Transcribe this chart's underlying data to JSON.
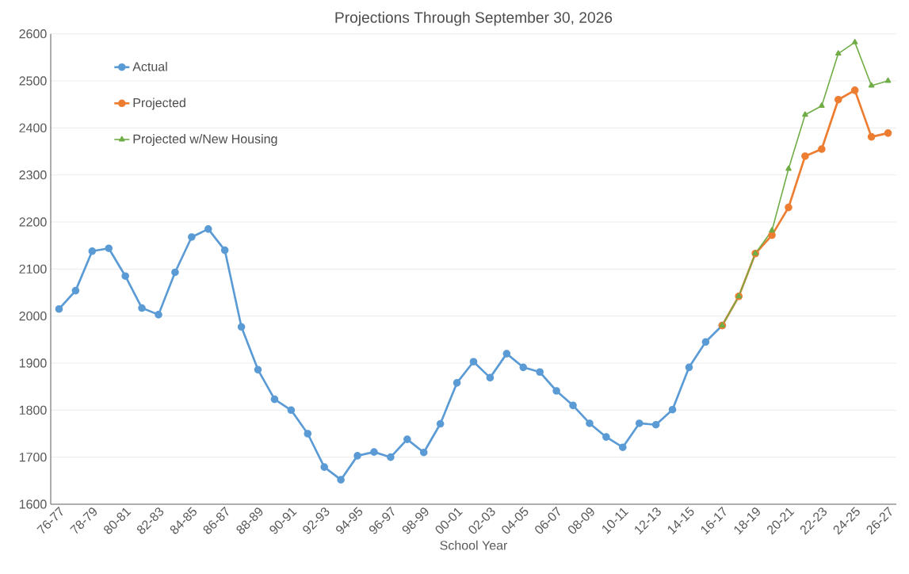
{
  "chart_data": {
    "type": "line",
    "title": "Projections Through September 30, 2026",
    "xlabel": "School Year",
    "categories": [
      "76-77",
      null,
      "78-79",
      null,
      "80-81",
      null,
      "82-83",
      null,
      "84-85",
      null,
      "86-87",
      null,
      "88-89",
      null,
      "90-91",
      null,
      "92-93",
      null,
      "94-95",
      null,
      "96-97",
      null,
      "98-99",
      null,
      "00-01",
      null,
      "02-03",
      null,
      "04-05",
      null,
      "06-07",
      null,
      "08-09",
      null,
      "10-11",
      null,
      "12-13",
      null,
      "14-15",
      null,
      "16-17",
      null,
      "18-19",
      null,
      "20-21",
      null,
      "22-23",
      null,
      "24-25",
      null,
      "26-27"
    ],
    "series": [
      {
        "name": "Actual",
        "color": "#5b9bd5",
        "marker": "circle",
        "values": [
          2015,
          2054,
          2138,
          2144,
          2085,
          2017,
          2003,
          2093,
          2168,
          2185,
          2140,
          1977,
          1886,
          1823,
          1800,
          1750,
          1679,
          1652,
          1703,
          1711,
          1700,
          1738,
          1710,
          1771,
          1858,
          1903,
          1869,
          1920,
          1891,
          1881,
          1841,
          1810,
          1772,
          1743,
          1721,
          1772,
          1769,
          1801,
          1891,
          1945,
          1980,
          null,
          null,
          null,
          null,
          null,
          null,
          null,
          null,
          null,
          null
        ]
      },
      {
        "name": "Projected",
        "color": "#ed7d31",
        "marker": "circle",
        "values": [
          null,
          null,
          null,
          null,
          null,
          null,
          null,
          null,
          null,
          null,
          null,
          null,
          null,
          null,
          null,
          null,
          null,
          null,
          null,
          null,
          null,
          null,
          null,
          null,
          null,
          null,
          null,
          null,
          null,
          null,
          null,
          null,
          null,
          null,
          null,
          null,
          null,
          null,
          null,
          null,
          1980,
          2042,
          2133,
          2172,
          2231,
          2340,
          2355,
          2460,
          2480,
          2381,
          2389
        ]
      },
      {
        "name": "Projected w/New Housing",
        "color": "#70ad47",
        "marker": "triangle",
        "values": [
          null,
          null,
          null,
          null,
          null,
          null,
          null,
          null,
          null,
          null,
          null,
          null,
          null,
          null,
          null,
          null,
          null,
          null,
          null,
          null,
          null,
          null,
          null,
          null,
          null,
          null,
          null,
          null,
          null,
          null,
          null,
          null,
          null,
          null,
          null,
          null,
          null,
          null,
          null,
          null,
          1980,
          2042,
          2133,
          2182,
          2313,
          2428,
          2447,
          2558,
          2582,
          2490,
          2500
        ]
      }
    ],
    "ylim": [
      1600,
      2600
    ],
    "yticks": [
      1600,
      1700,
      1800,
      1900,
      2000,
      2100,
      2200,
      2300,
      2400,
      2500,
      2600
    ],
    "grid": "y",
    "legend": "top left"
  }
}
